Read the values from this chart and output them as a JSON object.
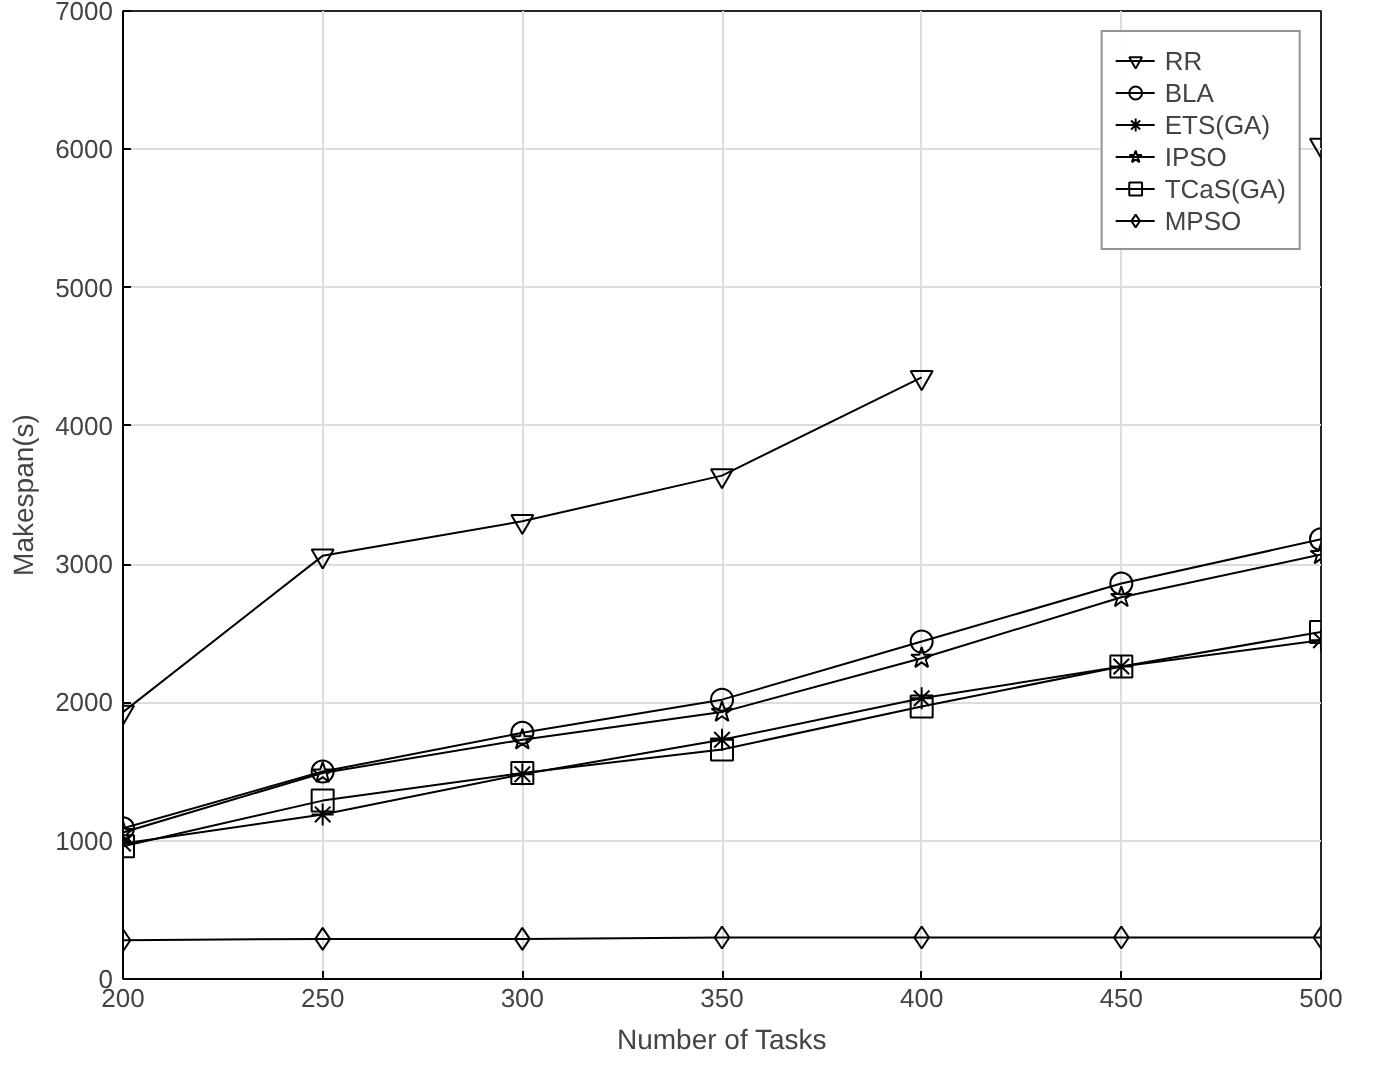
{
  "chart_data": {
    "type": "line",
    "xlabel": "Number of Tasks",
    "ylabel": "Makespan(s)",
    "x": [
      200,
      250,
      300,
      350,
      400,
      450,
      500
    ],
    "xlim": [
      200,
      500
    ],
    "xticks": [
      200,
      250,
      300,
      350,
      400,
      450,
      500
    ],
    "ylim": [
      0,
      7000
    ],
    "yticks": [
      0,
      1000,
      2000,
      3000,
      4000,
      5000,
      6000,
      7000
    ],
    "grid": true,
    "legend": "top right",
    "line_style": "solid",
    "series": [
      {
        "name": "RR",
        "color": "#000000",
        "marker": "triangle",
        "values": [
          1930,
          3060,
          3310,
          3640,
          4350,
          null,
          6030
        ]
      },
      {
        "name": "BLA",
        "color": "#000000",
        "marker": "circle",
        "values": [
          1090,
          1500,
          1780,
          2020,
          2440,
          2860,
          3180
        ]
      },
      {
        "name": "ETS(GA)",
        "color": "#000000",
        "marker": "cross",
        "values": [
          980,
          1190,
          1480,
          1730,
          2030,
          2260,
          2450
        ]
      },
      {
        "name": "IPSO",
        "color": "#000000",
        "marker": "star",
        "values": [
          1060,
          1490,
          1730,
          1930,
          2320,
          2760,
          3070
        ]
      },
      {
        "name": "TCaS(GA)",
        "color": "#000000",
        "marker": "square",
        "values": [
          960,
          1290,
          1490,
          1660,
          1970,
          2260,
          2510
        ]
      },
      {
        "name": "MPSO",
        "color": "#000000",
        "marker": "diamond",
        "values": [
          280,
          290,
          290,
          300,
          300,
          300,
          300
        ]
      }
    ]
  }
}
